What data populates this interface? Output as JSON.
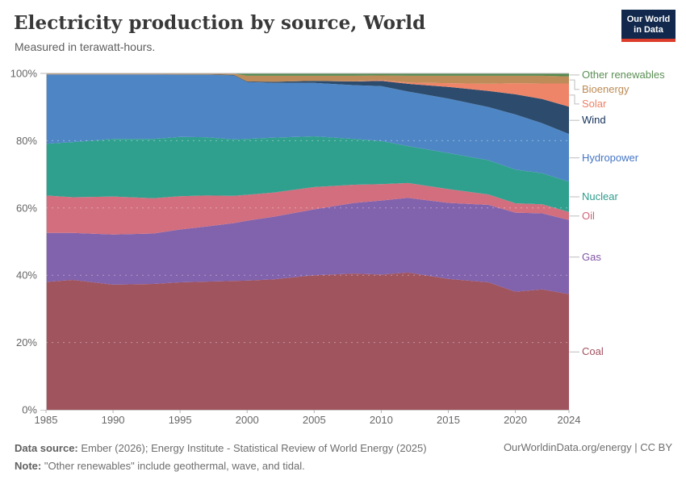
{
  "header": {
    "title": "Electricity production by source, World",
    "subtitle": "Measured in terawatt-hours.",
    "logo": {
      "line1": "Our World",
      "line2": "in Data",
      "bg_color": "#12294d",
      "accent_color": "#dc3d2b"
    }
  },
  "chart_data": {
    "type": "area",
    "stacked_percent": true,
    "title": "Electricity production by source, World",
    "xlabel": "",
    "ylabel": "",
    "xlim": [
      1985,
      2024
    ],
    "ylim": [
      0,
      100
    ],
    "grid": true,
    "legend_position": "right",
    "x": [
      1985,
      1987,
      1990,
      1993,
      1995,
      1997,
      1999,
      2000,
      2002,
      2005,
      2008,
      2010,
      2012,
      2015,
      2018,
      2020,
      2022,
      2024
    ],
    "x_tick_years": [
      1985,
      1990,
      1995,
      2000,
      2005,
      2010,
      2015,
      2020,
      2024
    ],
    "x_tick_labels": [
      "1985",
      "1990",
      "1995",
      "2000",
      "2005",
      "2010",
      "2015",
      "2020",
      "2024"
    ],
    "y_tick_values": [
      0,
      20,
      40,
      60,
      80,
      100
    ],
    "y_tick_labels": [
      "0%",
      "20%",
      "40%",
      "60%",
      "80%",
      "100%"
    ],
    "series": [
      {
        "name": "Coal",
        "color": "#A0545E",
        "label_color": "#A3515F",
        "values": [
          38.0,
          38.6,
          37.2,
          37.4,
          37.9,
          38.1,
          38.3,
          38.4,
          38.8,
          40.0,
          40.5,
          40.2,
          40.8,
          38.9,
          37.9,
          35.1,
          35.8,
          34.4
        ]
      },
      {
        "name": "Gas",
        "color": "#8162AC",
        "label_color": "#8055A5",
        "values": [
          14.6,
          14.0,
          14.9,
          15.0,
          15.7,
          16.4,
          17.2,
          17.8,
          18.6,
          19.6,
          21.0,
          22.0,
          22.2,
          22.6,
          23.0,
          23.5,
          22.6,
          22.0
        ]
      },
      {
        "name": "Oil",
        "color": "#D26E7E",
        "label_color": "#CE6377",
        "values": [
          11.1,
          10.6,
          11.3,
          10.5,
          9.9,
          9.2,
          8.1,
          7.7,
          7.2,
          6.6,
          5.4,
          4.9,
          4.4,
          4.1,
          3.1,
          2.8,
          2.7,
          2.4
        ]
      },
      {
        "name": "Nuclear",
        "color": "#30A08E",
        "label_color": "#2E9C8D",
        "values": [
          15.4,
          16.4,
          17.1,
          17.6,
          17.6,
          17.3,
          16.8,
          16.6,
          16.3,
          15.1,
          13.6,
          12.8,
          11.0,
          10.7,
          10.2,
          10.0,
          9.2,
          9.0
        ]
      },
      {
        "name": "Hydropower",
        "color": "#4E86C5",
        "label_color": "#4576C6",
        "values": [
          20.6,
          20.1,
          19.2,
          19.2,
          18.5,
          18.6,
          19.0,
          16.9,
          16.3,
          15.9,
          16.0,
          16.3,
          16.2,
          16.2,
          15.8,
          16.4,
          14.9,
          14.2
        ]
      },
      {
        "name": "Wind",
        "color": "#2C4B6D",
        "label_color": "#13305A",
        "values": [
          0.0,
          0.0,
          0.0,
          0.0,
          0.1,
          0.1,
          0.2,
          0.2,
          0.3,
          0.6,
          1.1,
          1.6,
          2.3,
          3.5,
          4.8,
          6.0,
          7.2,
          8.1
        ]
      },
      {
        "name": "Solar",
        "color": "#EE8568",
        "label_color": "#ED7F62",
        "values": [
          0.0,
          0.0,
          0.0,
          0.0,
          0.0,
          0.0,
          0.0,
          0.0,
          0.0,
          0.0,
          0.1,
          0.2,
          0.4,
          1.1,
          2.1,
          3.3,
          4.6,
          6.9
        ]
      },
      {
        "name": "Bioenergy",
        "color": "#BE8C58",
        "label_color": "#BC8B54",
        "values": [
          0.2,
          0.2,
          0.2,
          0.2,
          0.2,
          0.2,
          0.3,
          1.7,
          1.8,
          1.5,
          1.6,
          1.4,
          2.0,
          2.2,
          2.4,
          2.2,
          2.3,
          2.1
        ]
      },
      {
        "name": "Other renewables",
        "color": "#568A4F",
        "label_color": "#5B8E54",
        "values": [
          0.1,
          0.1,
          0.1,
          0.1,
          0.1,
          0.1,
          0.1,
          0.7,
          0.7,
          0.7,
          0.7,
          0.6,
          0.7,
          0.7,
          0.7,
          0.7,
          0.7,
          0.9
        ]
      }
    ]
  },
  "footer": {
    "source_label": "Data source:",
    "source_text": "Ember (2026); Energy Institute - Statistical Review of World Energy (2025)",
    "note_label": "Note:",
    "note_text": "\"Other renewables\" include geothermal, wave, and tidal.",
    "right_text": "OurWorldinData.org/energy | CC BY"
  }
}
